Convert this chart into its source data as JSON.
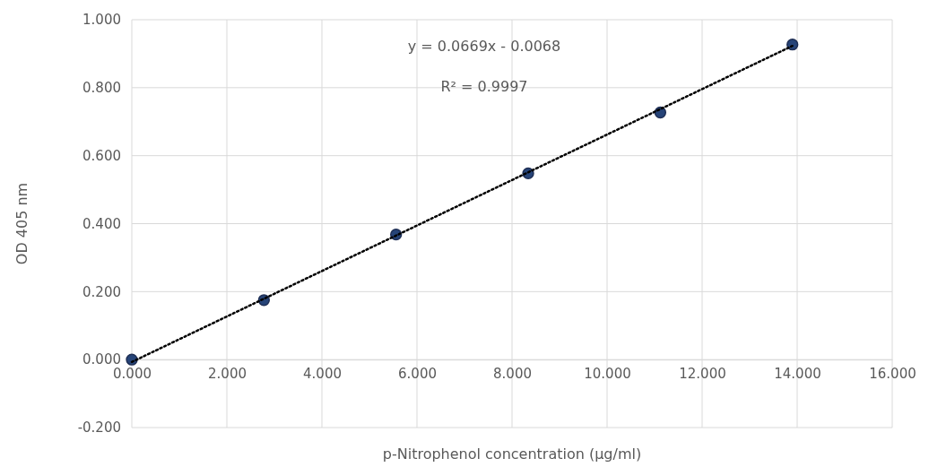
{
  "chart_data": {
    "type": "scatter",
    "xlabel": "p-Nitrophenol concentration (µg/ml)",
    "ylabel": "OD 405 nm",
    "annotations": [
      "y = 0.0669x - 0.0068",
      "R² = 0.9997"
    ],
    "xlim": [
      0,
      16
    ],
    "ylim": [
      -0.2,
      1.0
    ],
    "xticks": [
      {
        "value": 0,
        "label": "0.000"
      },
      {
        "value": 2,
        "label": "2.000"
      },
      {
        "value": 4,
        "label": "4.000"
      },
      {
        "value": 6,
        "label": "6.000"
      },
      {
        "value": 8,
        "label": "8.000"
      },
      {
        "value": 10,
        "label": "10.000"
      },
      {
        "value": 12,
        "label": "12.000"
      },
      {
        "value": 14,
        "label": "14.000"
      },
      {
        "value": 16,
        "label": "16.000"
      }
    ],
    "yticks": [
      {
        "value": -0.2,
        "label": "-0.200"
      },
      {
        "value": 0,
        "label": "0.000"
      },
      {
        "value": 0.2,
        "label": "0.200"
      },
      {
        "value": 0.4,
        "label": "0.400"
      },
      {
        "value": 0.6,
        "label": "0.600"
      },
      {
        "value": 0.8,
        "label": "0.800"
      },
      {
        "value": 1.0,
        "label": "1.000"
      }
    ],
    "grid": true,
    "series": [
      {
        "marker": "circle",
        "color": "#264478",
        "x": [
          0,
          2.78,
          5.56,
          8.34,
          11.12,
          13.9
        ],
        "values": [
          0,
          0.175,
          0.368,
          0.548,
          0.727,
          0.927
        ]
      },
      {
        "type": "line",
        "color": "#000000",
        "line_style": "dotted",
        "x": [
          0,
          13.9
        ],
        "values": [
          -0.007,
          0.923
        ]
      }
    ]
  }
}
